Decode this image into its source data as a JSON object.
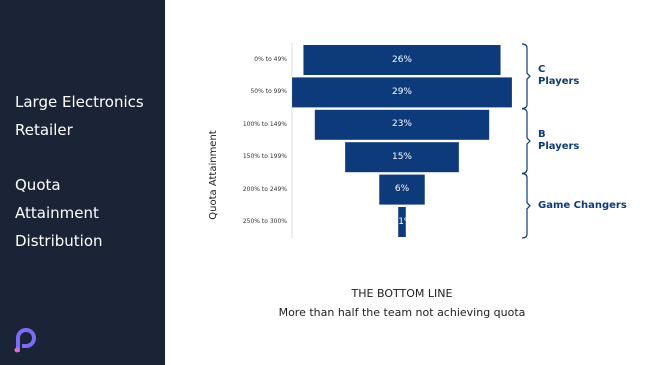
{
  "slide": {
    "title_lines": [
      "Large Electronics",
      "Retailer"
    ],
    "subtitle_lines": [
      "Quota",
      "Attainment",
      "Distribution"
    ]
  },
  "chart_data": {
    "type": "funnel",
    "y_label": "Quota Attainment",
    "categories": [
      "0% to 49%",
      "50% to 99%",
      "100% to 149%",
      "150% to 199%",
      "200% to 249%",
      "250% to 300%"
    ],
    "values": [
      26,
      29,
      23,
      15,
      6,
      1
    ],
    "value_labels": [
      "26%",
      "29%",
      "23%",
      "15%",
      "6%",
      "1%"
    ],
    "color": "#0d3a7a",
    "groups": [
      "C Players",
      "B Players",
      "Game Changers"
    ],
    "footer_title": "THE BOTTOM LINE",
    "footer_text": "More than half the team not achieving quota"
  }
}
